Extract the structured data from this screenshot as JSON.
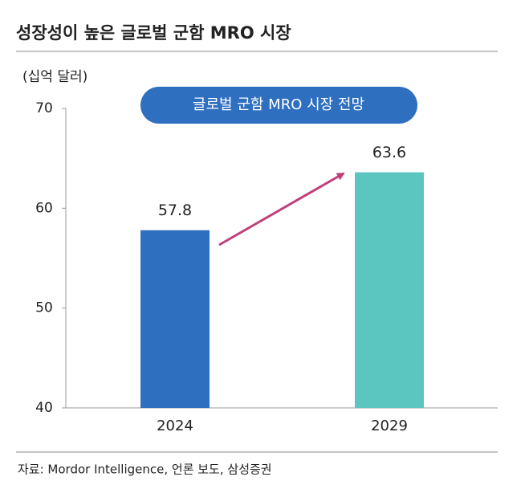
{
  "chart_data": {
    "type": "bar",
    "title": "성장성이 높은 글로벌 군함 MRO 시장",
    "y_label": "(십억 달러)",
    "annotation": "글로벌 군함 MRO 시장 전망",
    "source": "자료: Mordor Intelligence, 언론 보도, 삼성증권",
    "categories": [
      "2024",
      "2029"
    ],
    "values": [
      57.8,
      63.6
    ],
    "colors": [
      "#2f6fc0",
      "#5bc6c0"
    ],
    "ylim": [
      40,
      70
    ],
    "yticks": [
      40,
      50,
      60,
      70
    ],
    "grid": false
  }
}
